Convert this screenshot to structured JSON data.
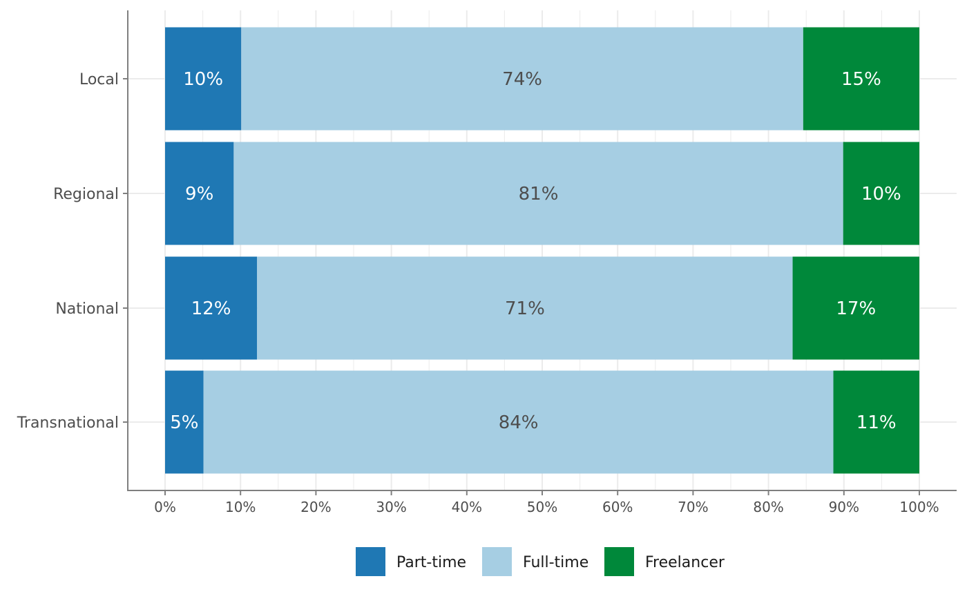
{
  "chart_data": {
    "type": "bar",
    "orientation": "horizontal",
    "stacked": true,
    "categories": [
      "Local",
      "Regional",
      "National",
      "Transnational"
    ],
    "series": [
      {
        "name": "Part-time",
        "color": "#1f78b4",
        "label_color": "#ffffff",
        "values": [
          10.1,
          9.1,
          12.2,
          5.1
        ],
        "labels": [
          "10%",
          "9%",
          "12%",
          "5%"
        ]
      },
      {
        "name": "Full-time",
        "color": "#a6cee3",
        "label_color": "#4d4d4d",
        "values": [
          74.5,
          80.8,
          71.0,
          83.5
        ],
        "labels": [
          "74%",
          "81%",
          "71%",
          "84%"
        ]
      },
      {
        "name": "Freelancer",
        "color": "#00883a",
        "label_color": "#ffffff",
        "values": [
          15.4,
          10.1,
          16.8,
          11.4
        ],
        "labels": [
          "15%",
          "10%",
          "17%",
          "11%"
        ]
      }
    ],
    "x_ticks": [
      "0%",
      "10%",
      "20%",
      "30%",
      "40%",
      "50%",
      "60%",
      "70%",
      "80%",
      "90%",
      "100%"
    ],
    "xlim": [
      0,
      100
    ],
    "grid": true,
    "legend_position": "bottom"
  }
}
